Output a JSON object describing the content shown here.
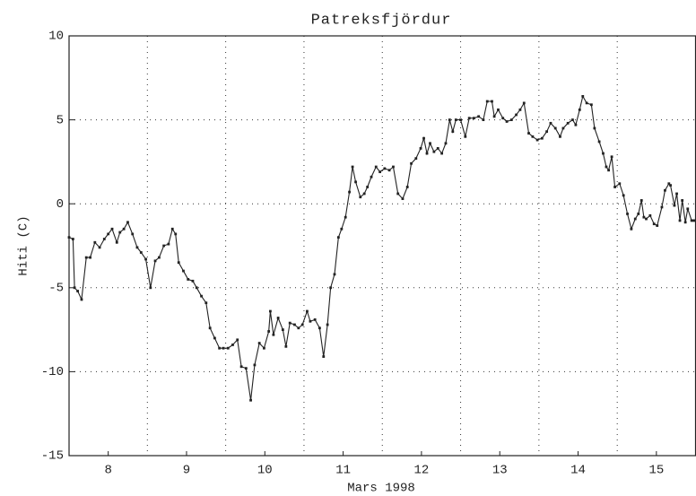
{
  "chart_data": {
    "type": "line",
    "title": "Patreksfjördur",
    "xlabel": "Mars 1998",
    "ylabel": "Hiti (C)",
    "xlim": [
      8,
      16
    ],
    "xticks": [
      {
        "value": 8.5,
        "label": "8"
      },
      {
        "value": 9.5,
        "label": "9"
      },
      {
        "value": 10.5,
        "label": "10"
      },
      {
        "value": 11.5,
        "label": "11"
      },
      {
        "value": 12.5,
        "label": "12"
      },
      {
        "value": 13.5,
        "label": "13"
      },
      {
        "value": 14.5,
        "label": "14"
      },
      {
        "value": 15.5,
        "label": "15"
      }
    ],
    "xgrid": [
      9,
      10,
      11,
      12,
      13,
      14,
      15
    ],
    "ylim": [
      -15,
      10
    ],
    "yticks": [
      -15,
      -10,
      -5,
      0,
      5,
      10
    ],
    "ygrid": [
      -10,
      -5,
      0,
      5
    ],
    "grid": true,
    "series": [
      {
        "name": "Hiti",
        "color": "#222222",
        "x": [
          8.0,
          8.05,
          8.07,
          8.11,
          8.16,
          8.22,
          8.27,
          8.33,
          8.39,
          8.45,
          8.5,
          8.55,
          8.61,
          8.65,
          8.7,
          8.75,
          8.81,
          8.87,
          8.92,
          8.98,
          9.04,
          9.1,
          9.15,
          9.21,
          9.27,
          9.32,
          9.36,
          9.4,
          9.46,
          9.52,
          9.58,
          9.63,
          9.69,
          9.75,
          9.8,
          9.86,
          9.92,
          9.97,
          10.03,
          10.09,
          10.15,
          10.2,
          10.26,
          10.32,
          10.37,
          10.43,
          10.49,
          10.55,
          10.57,
          10.61,
          10.67,
          10.73,
          10.77,
          10.82,
          10.88,
          10.93,
          10.98,
          11.04,
          11.08,
          11.14,
          11.2,
          11.25,
          11.3,
          11.34,
          11.39,
          11.44,
          11.48,
          11.53,
          11.58,
          11.62,
          11.66,
          11.72,
          11.77,
          11.81,
          11.86,
          11.92,
          11.97,
          12.03,
          12.09,
          12.14,
          12.2,
          12.26,
          12.32,
          12.37,
          12.43,
          12.49,
          12.53,
          12.57,
          12.61,
          12.66,
          12.71,
          12.76,
          12.81,
          12.86,
          12.9,
          12.94,
          13.0,
          13.06,
          13.11,
          13.17,
          13.23,
          13.29,
          13.34,
          13.4,
          13.43,
          13.48,
          13.54,
          13.59,
          13.65,
          13.71,
          13.76,
          13.81,
          13.87,
          13.92,
          13.98,
          14.04,
          14.1,
          14.15,
          14.21,
          14.27,
          14.31,
          14.37,
          14.43,
          14.47,
          14.52,
          14.56,
          14.61,
          14.67,
          14.71,
          14.77,
          14.82,
          14.86,
          14.89,
          14.93,
          14.97,
          15.03,
          15.08,
          15.13,
          15.18,
          15.23,
          15.27,
          15.31,
          15.34,
          15.37,
          15.42,
          15.47,
          15.51,
          15.57,
          15.61,
          15.66,
          15.68,
          15.73,
          15.76,
          15.8,
          15.83,
          15.87,
          15.9,
          15.95,
          15.98
        ],
        "values": [
          -2.0,
          -2.1,
          -5.0,
          -5.2,
          -5.7,
          -3.2,
          -3.2,
          -2.3,
          -2.6,
          -2.1,
          -1.8,
          -1.5,
          -2.3,
          -1.7,
          -1.5,
          -1.1,
          -1.8,
          -2.6,
          -2.9,
          -3.3,
          -5.0,
          -3.4,
          -3.2,
          -2.5,
          -2.4,
          -1.5,
          -1.8,
          -3.5,
          -4.0,
          -4.5,
          -4.6,
          -5.0,
          -5.5,
          -5.9,
          -7.4,
          -8.0,
          -8.6,
          -8.6,
          -8.6,
          -8.4,
          -8.1,
          -9.7,
          -9.8,
          -11.7,
          -9.6,
          -8.3,
          -8.6,
          -7.6,
          -6.4,
          -7.8,
          -6.8,
          -7.5,
          -8.5,
          -7.1,
          -7.2,
          -7.4,
          -7.2,
          -6.4,
          -7.0,
          -6.9,
          -7.4,
          -9.1,
          -7.2,
          -5.0,
          -4.2,
          -2.0,
          -1.5,
          -0.8,
          0.7,
          2.2,
          1.3,
          0.4,
          0.6,
          1.0,
          1.6,
          2.2,
          1.9,
          2.1,
          2.0,
          2.2,
          0.6,
          0.3,
          1.0,
          2.4,
          2.7,
          3.3,
          3.9,
          3.0,
          3.6,
          3.1,
          3.3,
          3.0,
          3.6,
          5.0,
          4.3,
          5.0,
          5.0,
          4.0,
          5.1,
          5.1,
          5.2,
          5.0,
          6.1,
          6.1,
          5.2,
          5.6,
          5.1,
          4.9,
          5.0,
          5.3,
          5.6,
          6.0,
          4.2,
          4.0,
          3.8,
          3.9,
          4.3,
          4.8,
          4.5,
          4.0,
          4.5,
          4.8,
          5.0,
          4.7,
          5.6,
          6.4,
          6.0,
          5.9,
          4.5,
          3.7,
          3.0,
          2.2,
          2.0,
          2.8,
          1.0,
          1.2,
          0.5,
          -0.6,
          -1.5,
          -0.9,
          -0.6,
          0.2,
          -0.8,
          -0.9,
          -0.7,
          -1.2,
          -1.3,
          -0.2,
          0.8,
          1.2,
          1.1,
          -0.1,
          0.6,
          -1.0,
          0.2,
          -1.1,
          -0.3,
          -1.0,
          -1.0
        ]
      }
    ]
  }
}
